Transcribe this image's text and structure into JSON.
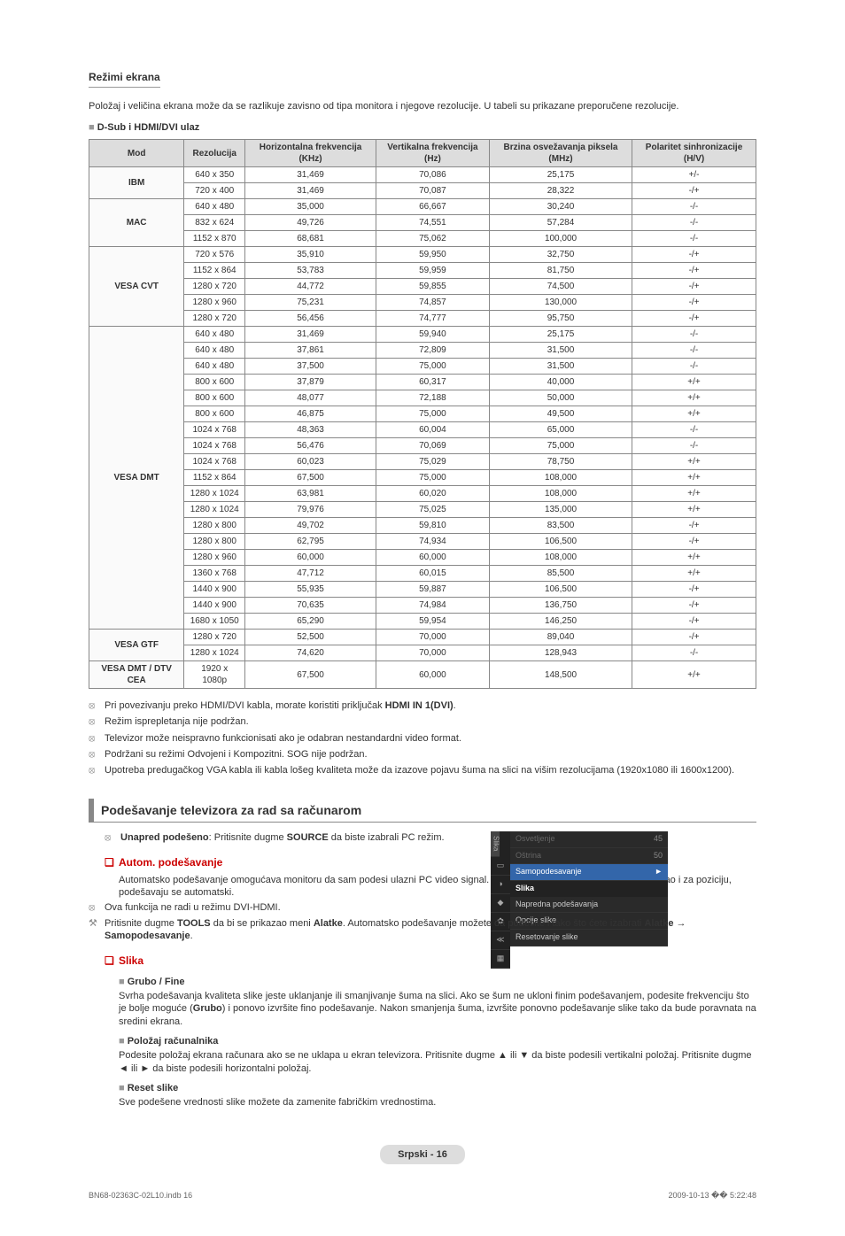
{
  "section_title": "Režimi ekrana",
  "intro": "Položaj i veličina ekrana može da se razlikuje zavisno od tipa monitora i njegove rezolucije. U tabeli su prikazane preporučene rezolucije.",
  "sub_label": "D-Sub i HDMI/DVI ulaz",
  "table": {
    "headers": [
      "Mod",
      "Rezolucija",
      "Horizontalna frekvencija (KHz)",
      "Vertikalna frekvencija (Hz)",
      "Brzina osvežavanja piksela (MHz)",
      "Polaritet sinhronizacije (H/V)"
    ],
    "groups": [
      {
        "mod": "IBM",
        "rows": [
          [
            "640 x 350",
            "31,469",
            "70,086",
            "25,175",
            "+/-"
          ],
          [
            "720 x 400",
            "31,469",
            "70,087",
            "28,322",
            "-/+"
          ]
        ]
      },
      {
        "mod": "MAC",
        "rows": [
          [
            "640 x 480",
            "35,000",
            "66,667",
            "30,240",
            "-/-"
          ],
          [
            "832 x 624",
            "49,726",
            "74,551",
            "57,284",
            "-/-"
          ],
          [
            "1152 x 870",
            "68,681",
            "75,062",
            "100,000",
            "-/-"
          ]
        ]
      },
      {
        "mod": "VESA CVT",
        "rows": [
          [
            "720 x 576",
            "35,910",
            "59,950",
            "32,750",
            "-/+"
          ],
          [
            "1152 x 864",
            "53,783",
            "59,959",
            "81,750",
            "-/+"
          ],
          [
            "1280 x 720",
            "44,772",
            "59,855",
            "74,500",
            "-/+"
          ],
          [
            "1280 x 960",
            "75,231",
            "74,857",
            "130,000",
            "-/+"
          ],
          [
            "1280 x 720",
            "56,456",
            "74,777",
            "95,750",
            "-/+"
          ]
        ]
      },
      {
        "mod": "VESA DMT",
        "rows": [
          [
            "640 x 480",
            "31,469",
            "59,940",
            "25,175",
            "-/-"
          ],
          [
            "640 x 480",
            "37,861",
            "72,809",
            "31,500",
            "-/-"
          ],
          [
            "640 x 480",
            "37,500",
            "75,000",
            "31,500",
            "-/-"
          ],
          [
            "800 x 600",
            "37,879",
            "60,317",
            "40,000",
            "+/+"
          ],
          [
            "800 x 600",
            "48,077",
            "72,188",
            "50,000",
            "+/+"
          ],
          [
            "800 x 600",
            "46,875",
            "75,000",
            "49,500",
            "+/+"
          ],
          [
            "1024 x 768",
            "48,363",
            "60,004",
            "65,000",
            "-/-"
          ],
          [
            "1024 x 768",
            "56,476",
            "70,069",
            "75,000",
            "-/-"
          ],
          [
            "1024 x 768",
            "60,023",
            "75,029",
            "78,750",
            "+/+"
          ],
          [
            "1152 x 864",
            "67,500",
            "75,000",
            "108,000",
            "+/+"
          ],
          [
            "1280 x 1024",
            "63,981",
            "60,020",
            "108,000",
            "+/+"
          ],
          [
            "1280 x 1024",
            "79,976",
            "75,025",
            "135,000",
            "+/+"
          ],
          [
            "1280 x 800",
            "49,702",
            "59,810",
            "83,500",
            "-/+"
          ],
          [
            "1280 x 800",
            "62,795",
            "74,934",
            "106,500",
            "-/+"
          ],
          [
            "1280 x 960",
            "60,000",
            "60,000",
            "108,000",
            "+/+"
          ],
          [
            "1360 x 768",
            "47,712",
            "60,015",
            "85,500",
            "+/+"
          ],
          [
            "1440 x 900",
            "55,935",
            "59,887",
            "106,500",
            "-/+"
          ],
          [
            "1440 x 900",
            "70,635",
            "74,984",
            "136,750",
            "-/+"
          ],
          [
            "1680 x 1050",
            "65,290",
            "59,954",
            "146,250",
            "-/+"
          ]
        ]
      },
      {
        "mod": "VESA GTF",
        "rows": [
          [
            "1280 x 720",
            "52,500",
            "70,000",
            "89,040",
            "-/+"
          ],
          [
            "1280 x 1024",
            "74,620",
            "70,000",
            "128,943",
            "-/-"
          ]
        ]
      },
      {
        "mod": "VESA DMT / DTV CEA",
        "rows": [
          [
            "1920 x 1080p",
            "67,500",
            "60,000",
            "148,500",
            "+/+"
          ]
        ]
      }
    ]
  },
  "notes": [
    "Pri povezivanju preko HDMI/DVI kabla, morate koristiti priključak HDMI IN 1(DVI).",
    "Režim isprepletanja nije podržan.",
    "Televizor može neispravno funkcionisati ako je odabran nestandardni video format.",
    "Podržani su režimi Odvojeni i Kompozitni. SOG nije podržan.",
    "Upotreba predugačkog VGA kabla ili kabla lošeg kvaliteta može da izazove pojavu šuma na slici na višim rezolucijama (1920x1080 ili 1600x1200)."
  ],
  "bar_title": "Podešavanje televizora za rad sa računarom",
  "preset": "Unapred podešeno: Pritisnite dugme SOURCE da biste izabrali PC režim.",
  "auto": {
    "title": "Autom. podešavanje",
    "body": "Automatsko podešavanje omogućava monitoru da sam podesi ulazni PC video signal. Vrednosti za fino i grubo podešavanje, kao i za poziciju, podešavaju se automatski.",
    "n1": "Ova funkcija ne radi u režimu DVI-HDMI.",
    "n2": "Pritisnite dugme TOOLS da bi se prikazao meni Alatke. Automatsko podešavanje možete da podesite i tako što ćete izabrati Alatke → Samopodesavanje."
  },
  "slika": {
    "title": "Slika",
    "grubo_t": "Grubo / Fine",
    "grubo_b": "Svrha podešavanja kvaliteta slike jeste uklanjanje ili smanjivanje šuma na slici. Ako se šum ne ukloni finim podešavanjem, podesite frekvenciju što je bolje moguće (Grubo) i ponovo izvršite fino podešavanje. Nakon smanjenja šuma, izvršite ponovno podešavanje slike tako da bude poravnata na sredini ekrana.",
    "polozaj_t": "Položaj računalnika",
    "polozaj_b": "Podesite položaj ekrana računara ako se ne uklapa u ekran televizora. Pritisnite dugme ▲ ili ▼ da biste podesili vertikalni položaj. Pritisnite dugme ◄ ili ► da biste podesili horizontalni položaj.",
    "reset_t": "Reset slike",
    "reset_b": "Sve podešene vrednosti slike možete da zamenite fabričkim vrednostima."
  },
  "osd": {
    "tab_label": "Slika",
    "r1": {
      "l": "Osvetljenje",
      "v": "45"
    },
    "r2": {
      "l": "Oštrina",
      "v": "50"
    },
    "sel": "Samopodesavanje",
    "head": "Slika",
    "i1": "Napredna podešavanja",
    "i2": "Opcije slike",
    "i3": "Resetovanje slike"
  },
  "footer": "Srpski - 16",
  "bottom_left": "BN68-02363C-02L10.indb   16",
  "bottom_right": "2009-10-13   �� 5:22:48"
}
